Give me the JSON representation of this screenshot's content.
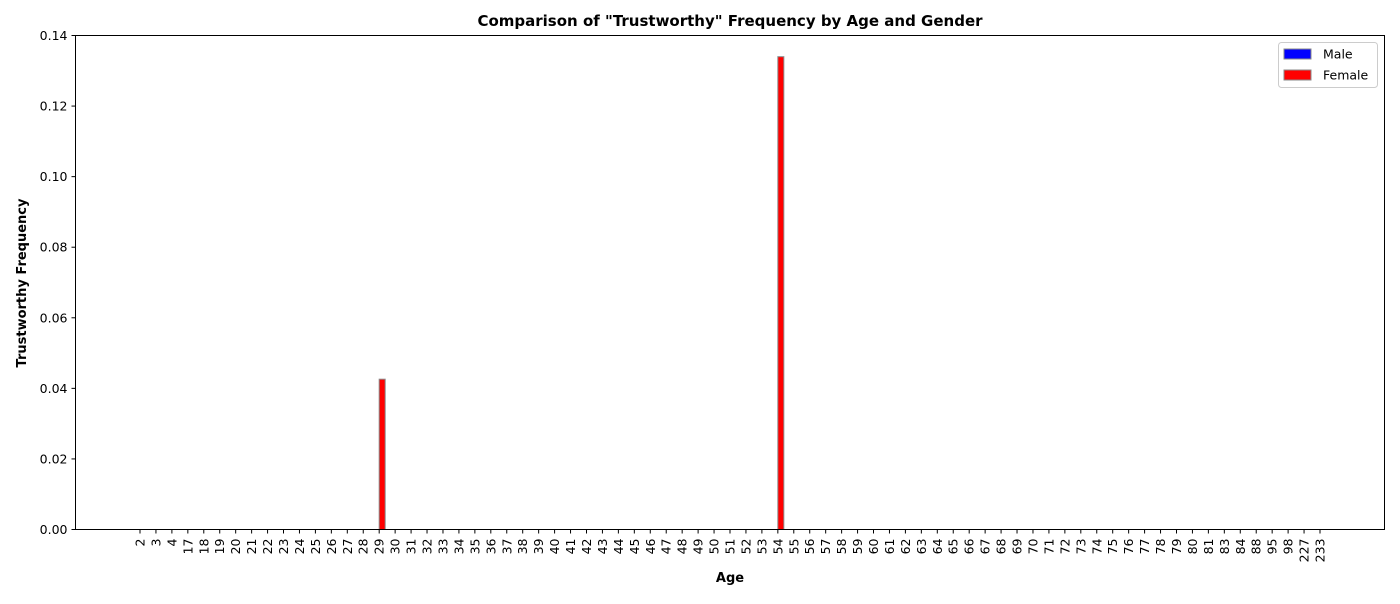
{
  "chart_data": {
    "type": "bar",
    "title": "Comparison of \"Trustworthy\" Frequency by Age and Gender",
    "xlabel": "Age",
    "ylabel": "Trustworthy Frequency",
    "ylim": [
      0,
      0.14
    ],
    "yticks": [
      "0.00",
      "0.02",
      "0.04",
      "0.06",
      "0.08",
      "0.10",
      "0.12",
      "0.14"
    ],
    "categories": [
      "2",
      "3",
      "4",
      "17",
      "18",
      "19",
      "20",
      "21",
      "22",
      "23",
      "24",
      "25",
      "26",
      "27",
      "28",
      "29",
      "30",
      "31",
      "32",
      "33",
      "34",
      "35",
      "36",
      "37",
      "38",
      "39",
      "40",
      "41",
      "42",
      "43",
      "44",
      "45",
      "46",
      "47",
      "48",
      "49",
      "50",
      "51",
      "52",
      "53",
      "54",
      "55",
      "56",
      "57",
      "58",
      "59",
      "60",
      "61",
      "62",
      "63",
      "64",
      "65",
      "66",
      "67",
      "68",
      "69",
      "70",
      "71",
      "72",
      "73",
      "74",
      "75",
      "76",
      "77",
      "78",
      "79",
      "80",
      "81",
      "83",
      "84",
      "88",
      "95",
      "98",
      "227",
      "233"
    ],
    "series": [
      {
        "name": "Male",
        "color": "#0000ff",
        "values": [
          0,
          0,
          0,
          0,
          0,
          0,
          0,
          0,
          0,
          0,
          0,
          0,
          0,
          0,
          0,
          0,
          0,
          0,
          0,
          0,
          0,
          0,
          0,
          0,
          0,
          0,
          0,
          0,
          0,
          0,
          0,
          0,
          0,
          0,
          0,
          0,
          0,
          0,
          0,
          0,
          0,
          0,
          0,
          0,
          0,
          0,
          0,
          0,
          0,
          0,
          0,
          0,
          0,
          0,
          0,
          0,
          0,
          0,
          0,
          0,
          0,
          0,
          0,
          0,
          0,
          0,
          0,
          0,
          0,
          0,
          0,
          0,
          0,
          0,
          0
        ]
      },
      {
        "name": "Female",
        "color": "#ff0000",
        "values": [
          0,
          0,
          0,
          0,
          0,
          0,
          0,
          0,
          0,
          0,
          0,
          0,
          0,
          0,
          0,
          0.0426,
          0,
          0,
          0,
          0,
          0,
          0,
          0,
          0,
          0,
          0,
          0,
          0,
          0,
          0,
          0,
          0,
          0,
          0,
          0,
          0,
          0,
          0,
          0,
          0,
          0.134,
          0,
          0,
          0,
          0,
          0,
          0,
          0,
          0,
          0,
          0,
          0,
          0,
          0,
          0,
          0,
          0,
          0,
          0,
          0,
          0,
          0,
          0,
          0,
          0,
          0,
          0,
          0,
          0,
          0,
          0,
          0,
          0,
          0,
          0
        ]
      }
    ],
    "legend_position": "top-right",
    "grid": false
  }
}
